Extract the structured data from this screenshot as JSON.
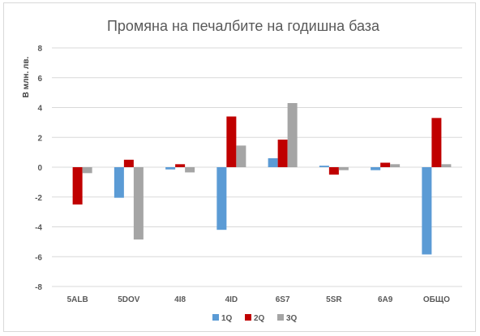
{
  "chart_data": {
    "type": "bar",
    "title": "Промяна на печалбите на годишна база",
    "xlabel": "",
    "ylabel": "В млн. лв.",
    "categories": [
      "5ALB",
      "5DOV",
      "4I8",
      "4ID",
      "6S7",
      "5SR",
      "6A9",
      "ОБЩО"
    ],
    "series": [
      {
        "name": "1Q",
        "color": "#5b9bd5",
        "values": [
          0,
          -2.05,
          -0.15,
          -4.2,
          0.6,
          0.1,
          -0.2,
          -5.85
        ]
      },
      {
        "name": "2Q",
        "color": "#c00000",
        "values": [
          -2.5,
          0.5,
          0.2,
          3.4,
          1.85,
          -0.5,
          0.3,
          3.3
        ]
      },
      {
        "name": "3Q",
        "color": "#a5a5a5",
        "values": [
          -0.4,
          -4.85,
          -0.35,
          1.45,
          4.3,
          -0.2,
          0.2,
          0.2
        ]
      }
    ],
    "ylim": [
      -8,
      8
    ],
    "yticks": [
      8,
      6,
      4,
      2,
      0,
      -2,
      -4,
      -6,
      -8
    ],
    "grid": true,
    "legend": "bottom"
  }
}
